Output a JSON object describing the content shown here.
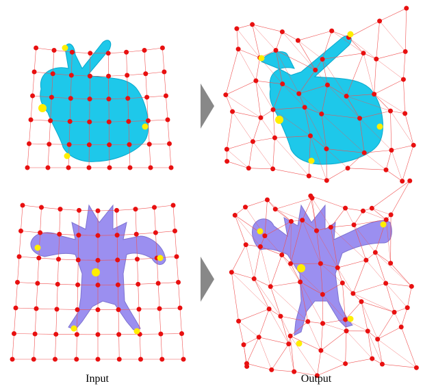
{
  "labels": {
    "input": "Input",
    "output": "Output"
  }
}
